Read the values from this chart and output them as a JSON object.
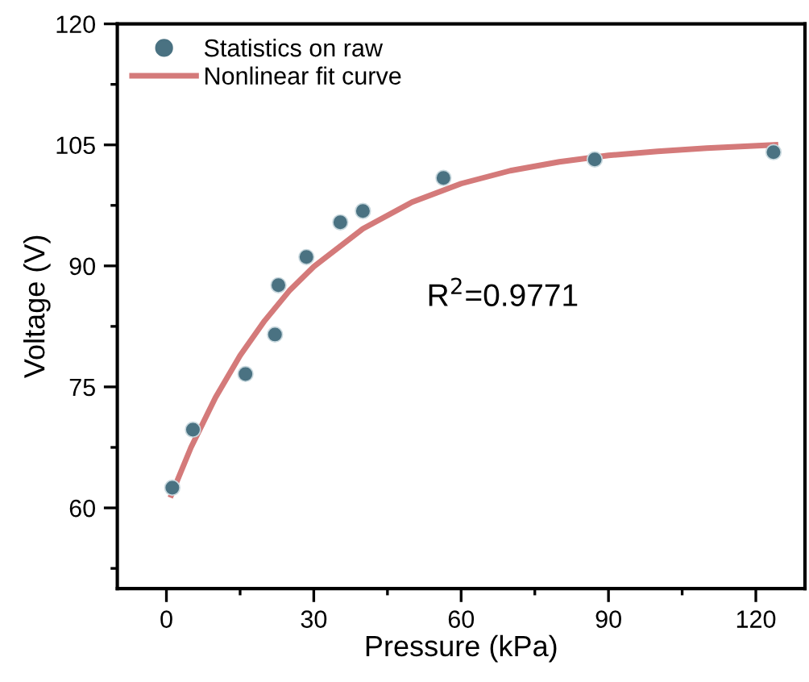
{
  "chart_data": {
    "type": "scatter",
    "xlabel": "Pressure (kPa)",
    "ylabel": "Voltage (V)",
    "xlim": [
      -10,
      130
    ],
    "ylim": [
      50,
      120
    ],
    "xticks": [
      0,
      30,
      60,
      90,
      120
    ],
    "yticks": [
      60,
      75,
      90,
      105,
      120
    ],
    "legend": "top left",
    "grid": false,
    "annotations": [
      "R$^{2}$=0.9771"
    ],
    "series": [
      {
        "name": "Statistics on raw",
        "marker": "circle",
        "color": "#4a7282",
        "x": [
          1.2,
          5.4,
          16.1,
          22.1,
          22.8,
          28.5,
          35.4,
          40.0,
          56.4,
          87.2,
          123.6
        ],
        "values": [
          62.5,
          69.7,
          76.6,
          81.5,
          87.6,
          91.1,
          95.4,
          96.8,
          100.9,
          103.2,
          104.1
        ]
      },
      {
        "name": "Nonlinear fit curve",
        "type": "line",
        "color": "#d47a7a",
        "line_style": "solid",
        "x": [
          1,
          5,
          10,
          15,
          20,
          25,
          30,
          40,
          50,
          60,
          70,
          80,
          90,
          100,
          110,
          124
        ],
        "values": [
          61.6,
          67.5,
          73.7,
          78.9,
          83.2,
          86.9,
          89.9,
          94.6,
          97.9,
          100.2,
          101.8,
          102.9,
          103.7,
          104.2,
          104.6,
          105.0
        ]
      }
    ]
  }
}
